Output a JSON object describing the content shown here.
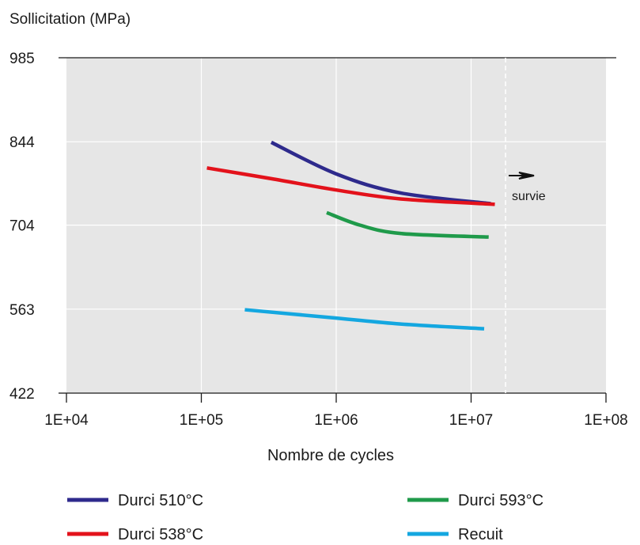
{
  "chart_data": {
    "type": "line",
    "ylabel": "Sollicitation (MPa)",
    "xlabel": "Nombre de cycles",
    "x_scale": "log",
    "xlim": [
      10000,
      100000000
    ],
    "ylim": [
      422,
      985
    ],
    "x_ticks": [
      {
        "value": 10000,
        "label": "1E+04"
      },
      {
        "value": 100000,
        "label": "1E+05"
      },
      {
        "value": 1000000,
        "label": "1E+06"
      },
      {
        "value": 10000000,
        "label": "1E+07"
      },
      {
        "value": 100000000,
        "label": "1E+08"
      }
    ],
    "y_ticks": [
      {
        "value": 422,
        "label": "422"
      },
      {
        "value": 563,
        "label": "563"
      },
      {
        "value": 704,
        "label": "704"
      },
      {
        "value": 844,
        "label": "844"
      },
      {
        "value": 985,
        "label": "985"
      }
    ],
    "grid": true,
    "runout": {
      "x": 18000000,
      "label": "survie"
    },
    "legend_position": "bottom",
    "series": [
      {
        "name": "Durci 510°C",
        "color": "#2e2a8c",
        "points": [
          [
            330000,
            843
          ],
          [
            1000000,
            790
          ],
          [
            3000000,
            758
          ],
          [
            14000000,
            740
          ]
        ]
      },
      {
        "name": "Durci 538°C",
        "color": "#e3121b",
        "points": [
          [
            110000,
            800
          ],
          [
            330000,
            782
          ],
          [
            1000000,
            763
          ],
          [
            3000000,
            748
          ],
          [
            15000000,
            739
          ]
        ]
      },
      {
        "name": "Durci 593°C",
        "color": "#1f9a4a",
        "points": [
          [
            850000,
            725
          ],
          [
            1500000,
            704
          ],
          [
            3000000,
            690
          ],
          [
            13500000,
            684
          ]
        ]
      },
      {
        "name": "Recuit",
        "color": "#14a7e0",
        "points": [
          [
            210000,
            562
          ],
          [
            1000000,
            548
          ],
          [
            3000000,
            538
          ],
          [
            12500000,
            530
          ]
        ]
      }
    ]
  }
}
